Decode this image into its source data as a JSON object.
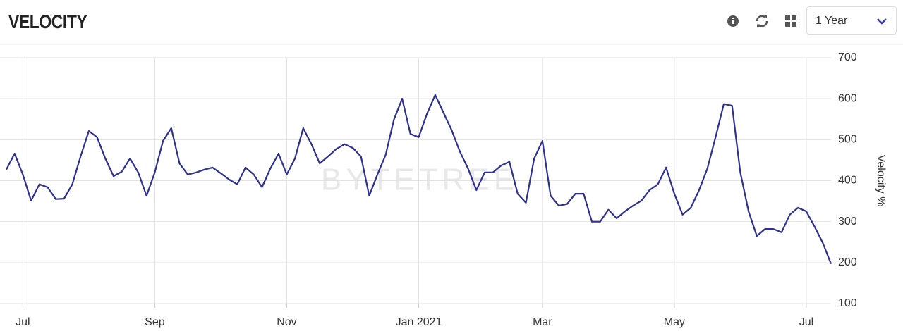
{
  "header": {
    "title": "VELOCITY",
    "range": "1 Year"
  },
  "watermark": "BYTETREE",
  "chart_data": {
    "type": "line",
    "y_label": "Velocity %",
    "categories": [
      null,
      null,
      "Jul",
      null,
      null,
      null,
      null,
      null,
      null,
      null,
      null,
      null,
      null,
      null,
      null,
      null,
      null,
      null,
      "Sep",
      null,
      null,
      null,
      null,
      null,
      null,
      null,
      null,
      null,
      null,
      null,
      null,
      null,
      null,
      null,
      "Nov",
      null,
      null,
      null,
      null,
      null,
      null,
      null,
      null,
      null,
      null,
      null,
      null,
      null,
      null,
      null,
      "Jan 2021",
      null,
      null,
      null,
      null,
      null,
      null,
      null,
      null,
      null,
      null,
      null,
      null,
      null,
      null,
      "Mar",
      null,
      null,
      null,
      null,
      null,
      null,
      null,
      null,
      null,
      null,
      null,
      null,
      null,
      null,
      null,
      "May",
      null,
      null,
      null,
      null,
      null,
      null,
      null,
      null,
      null,
      null,
      null,
      null,
      null,
      null,
      null,
      "Jul",
      null,
      null,
      null
    ],
    "series": [
      {
        "name": "Velocity",
        "color": "#2e318f",
        "values": [
          427,
          466,
          415,
          351,
          391,
          384,
          355,
          356,
          391,
          459,
          521,
          506,
          454,
          411,
          422,
          454,
          420,
          363,
          420,
          497,
          528,
          442,
          415,
          420,
          427,
          432,
          418,
          403,
          391,
          432,
          415,
          384,
          429,
          466,
          415,
          454,
          528,
          489,
          442,
          459,
          477,
          489,
          480,
          459,
          363,
          415,
          463,
          549,
          600,
          514,
          506,
          563,
          609,
          566,
          523,
          471,
          429,
          377,
          420,
          420,
          437,
          446,
          368,
          346,
          454,
          497,
          363,
          339,
          343,
          368,
          368,
          300,
          300,
          329,
          308,
          325,
          339,
          351,
          377,
          391,
          432,
          368,
          317,
          334,
          377,
          429,
          506,
          587,
          583,
          420,
          325,
          265,
          282,
          282,
          274,
          317,
          334,
          325,
          288,
          248,
          197
        ]
      }
    ],
    "ylim": [
      100,
      700
    ],
    "yticks": [
      100,
      200,
      300,
      400,
      500,
      600,
      700
    ],
    "grid": true
  }
}
